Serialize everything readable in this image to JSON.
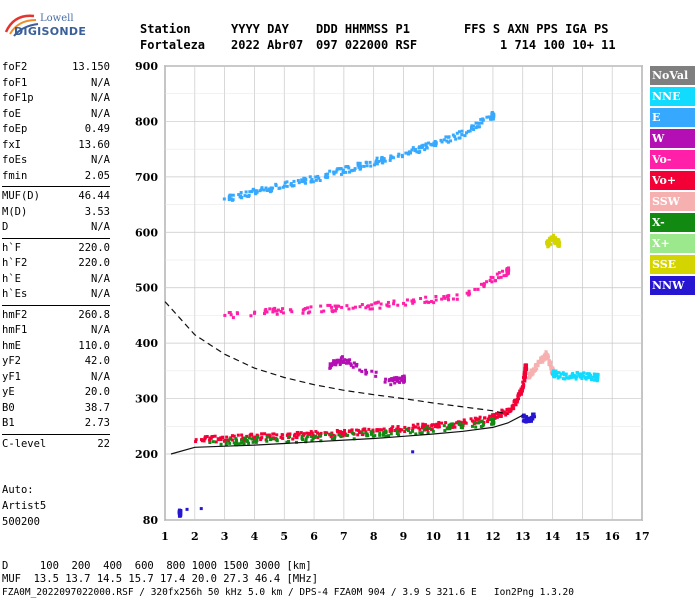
{
  "logo": {
    "line1": "Lowell",
    "line2": "DIGISONDE"
  },
  "header": {
    "labels": [
      "Station",
      "YYYY DAY",
      "DDD HHMMSS P1",
      "FFS S AXN PPS IGA PS"
    ],
    "values": [
      "Fortaleza",
      "2022 Abr07",
      "097 022000 RSF",
      "1 714 100 10+ 11"
    ]
  },
  "params": [
    {
      "k": "foF2",
      "v": "13.150"
    },
    {
      "k": "foF1",
      "v": "N/A"
    },
    {
      "k": "foF1p",
      "v": "N/A"
    },
    {
      "k": "foE",
      "v": "N/A"
    },
    {
      "k": "foEp",
      "v": "0.49"
    },
    {
      "k": "fxI",
      "v": "13.60"
    },
    {
      "k": "foEs",
      "v": "N/A"
    },
    {
      "k": "fmin",
      "v": "2.05"
    },
    {
      "k": "MUF(D)",
      "v": "46.44"
    },
    {
      "k": "M(D)",
      "v": "3.53"
    },
    {
      "k": "D",
      "v": "N/A"
    },
    {
      "k": "h`F",
      "v": "220.0"
    },
    {
      "k": "h`F2",
      "v": "220.0"
    },
    {
      "k": "h`E",
      "v": "N/A"
    },
    {
      "k": "h`Es",
      "v": "N/A"
    },
    {
      "k": "hmF2",
      "v": "260.8"
    },
    {
      "k": "hmF1",
      "v": "N/A"
    },
    {
      "k": "hmE",
      "v": "110.0"
    },
    {
      "k": "yF2",
      "v": "42.0"
    },
    {
      "k": "yF1",
      "v": "N/A"
    },
    {
      "k": "yE",
      "v": "20.0"
    },
    {
      "k": "B0",
      "v": "38.7"
    },
    {
      "k": "B1",
      "v": "2.73"
    },
    {
      "k": "C-level",
      "v": "22"
    }
  ],
  "auto": {
    "label": "Auto:",
    "software": "Artist5",
    "version": "500200"
  },
  "legend": [
    {
      "label": "NoVal",
      "color": "#7f7f7f"
    },
    {
      "label": "NNE",
      "color": "#11dbff"
    },
    {
      "label": "E",
      "color": "#36a9ff"
    },
    {
      "label": "W",
      "color": "#b40fb4"
    },
    {
      "label": "Vo-",
      "color": "#ff1fa8"
    },
    {
      "label": "Vo+",
      "color": "#f30036"
    },
    {
      "label": "SSW",
      "color": "#f6b0b0"
    },
    {
      "label": "X-",
      "color": "#128a12"
    },
    {
      "label": "X+",
      "color": "#9ce88c"
    },
    {
      "label": "SSE",
      "color": "#d4d400"
    },
    {
      "label": "NNW",
      "color": "#2616d2"
    }
  ],
  "footer": {
    "line1": "D     100  200  400  600  800 1000 1500 3000 [km]",
    "line2": "MUF  13.5 13.7 14.5 15.7 17.4 20.0 27.3 46.4 [MHz]",
    "line3": "FZA0M_2022097022000.RSF / 320fx256h 50 kHz 5.0 km / DPS-4 FZA0M 904 / 3.9 S 321.6 E   Ion2Png 1.3.20"
  },
  "chart_data": {
    "type": "scatter",
    "xlim": [
      1,
      17
    ],
    "ylim": [
      80,
      900
    ],
    "xticks": [
      1,
      2,
      3,
      4,
      5,
      6,
      7,
      8,
      9,
      10,
      11,
      12,
      13,
      14,
      15,
      16,
      17
    ],
    "yticks": [
      80,
      200,
      300,
      400,
      500,
      600,
      700,
      800,
      900
    ],
    "grid": true,
    "series": [
      {
        "name": "Vo+",
        "color": "#f30036",
        "x": [
          2.0,
          3.0,
          4.0,
          5.0,
          6.0,
          7.0,
          8.0,
          9.0,
          10.0,
          11.0,
          12.0,
          12.5,
          12.8,
          13.0,
          13.1
        ],
        "y": [
          225,
          228,
          230,
          232,
          235,
          238,
          242,
          246,
          250,
          256,
          266,
          278,
          295,
          320,
          355
        ]
      },
      {
        "name": "X-",
        "color": "#128a12",
        "x": [
          2.5,
          4.0,
          6.0,
          8.0,
          10.0,
          12.0
        ],
        "y": [
          220,
          224,
          228,
          236,
          244,
          258
        ]
      },
      {
        "name": "Vo-",
        "color": "#ff1fa8",
        "x": [
          3.0,
          5.0,
          7.0,
          9.0,
          11.0,
          12.5
        ],
        "y": [
          450,
          458,
          464,
          472,
          486,
          530
        ]
      },
      {
        "name": "E",
        "color": "#36a9ff",
        "x": [
          3.0,
          4.0,
          5.0,
          6.0,
          7.0,
          8.0,
          9.0,
          10.0,
          11.0,
          12.0
        ],
        "y": [
          660,
          672,
          684,
          696,
          712,
          726,
          742,
          758,
          778,
          810
        ]
      },
      {
        "name": "SSW",
        "color": "#f6b0b0",
        "x": [
          13.2,
          13.5,
          13.8,
          14.0
        ],
        "y": [
          340,
          360,
          380,
          350
        ]
      },
      {
        "name": "NNE",
        "color": "#11dbff",
        "x": [
          14.0,
          14.5,
          15.0,
          15.5
        ],
        "y": [
          345,
          340,
          342,
          338
        ]
      },
      {
        "name": "SSE",
        "color": "#d4d400",
        "x": [
          13.8,
          14.0,
          14.2
        ],
        "y": [
          575,
          590,
          580
        ]
      },
      {
        "name": "NNW",
        "color": "#2616d2",
        "x": [
          13.0,
          13.2,
          13.4,
          1.5
        ],
        "y": [
          265,
          262,
          268,
          92
        ]
      },
      {
        "name": "W",
        "color": "#b40fb4",
        "x": [
          6.5,
          7.0,
          8.5,
          9.0
        ],
        "y": [
          360,
          370,
          330,
          335
        ]
      }
    ],
    "curves": [
      {
        "style": "solid",
        "x": [
          1.2,
          2,
          3,
          4,
          5,
          6,
          7,
          8,
          9,
          10,
          11,
          12,
          12.5,
          13.0
        ],
        "y": [
          200,
          212,
          214,
          216,
          219,
          222,
          225,
          228,
          232,
          236,
          241,
          248,
          256,
          270
        ]
      },
      {
        "style": "dashed",
        "x": [
          1.0,
          1.5,
          2,
          3,
          4,
          5,
          6,
          7,
          8,
          9,
          10,
          11,
          12,
          12.5
        ],
        "y": [
          475,
          445,
          415,
          380,
          355,
          338,
          325,
          315,
          307,
          300,
          292,
          285,
          278,
          272
        ]
      }
    ]
  }
}
